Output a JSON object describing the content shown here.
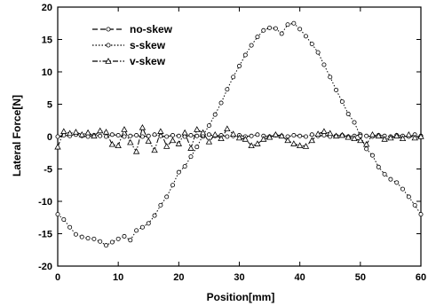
{
  "chart_data": {
    "type": "line",
    "title": "",
    "xlabel": "Position[mm]",
    "ylabel": "Lateral Force[N]",
    "xlim": [
      0,
      60
    ],
    "ylim": [
      -20,
      20
    ],
    "xticks": [
      0,
      10,
      20,
      30,
      40,
      50,
      60
    ],
    "yticks": [
      20,
      15,
      10,
      5,
      0,
      -5,
      -10,
      -15,
      -20
    ],
    "grid": false,
    "legend_position": "top-left",
    "series": [
      {
        "name": "no-skew",
        "marker": "circle",
        "line_style": "dash",
        "x": [
          0,
          1,
          2,
          3,
          4,
          5,
          6,
          7,
          8,
          9,
          10,
          11,
          12,
          13,
          14,
          15,
          16,
          17,
          18,
          19,
          20,
          21,
          22,
          23,
          24,
          25,
          26,
          27,
          28,
          29,
          30,
          31,
          32,
          33,
          34,
          35,
          36,
          37,
          38,
          39,
          40,
          41,
          42,
          43,
          44,
          45,
          46,
          47,
          48,
          49,
          50,
          51,
          52,
          53,
          54,
          55,
          56,
          57,
          58,
          59,
          60
        ],
        "y": [
          0,
          0.2,
          0.1,
          0.3,
          0.1,
          0,
          0.2,
          0.1,
          0,
          0.3,
          0.2,
          0,
          0.1,
          0.2,
          0,
          0.1,
          0.3,
          0.1,
          0,
          0.2,
          0.1,
          0,
          0.2,
          0.1,
          0,
          0.3,
          0.1,
          0.2,
          0,
          0.1,
          0.2,
          0,
          0.1,
          0.3,
          0.1,
          0,
          0.2,
          0.1,
          0,
          0.2,
          0.1,
          0,
          0.3,
          0.1,
          0.2,
          0,
          0.1,
          0.2,
          0,
          0.1,
          0.3,
          0.1,
          0,
          0.2,
          0.1,
          0,
          0.2,
          0.1,
          0,
          0.3,
          0.1
        ]
      },
      {
        "name": "s-skew",
        "marker": "circle",
        "line_style": "dot",
        "x": [
          0,
          1,
          2,
          3,
          4,
          5,
          6,
          7,
          8,
          9,
          10,
          11,
          12,
          13,
          14,
          15,
          16,
          17,
          18,
          19,
          20,
          21,
          22,
          23,
          24,
          25,
          26,
          27,
          28,
          29,
          30,
          31,
          32,
          33,
          34,
          35,
          36,
          37,
          38,
          39,
          40,
          41,
          42,
          43,
          44,
          45,
          46,
          47,
          48,
          49,
          50,
          51,
          52,
          53,
          54,
          55,
          56,
          57,
          58,
          59,
          60
        ],
        "y": [
          -12,
          -12.8,
          -14,
          -15.1,
          -15.5,
          -15.7,
          -15.8,
          -16.2,
          -16.8,
          -16.3,
          -15.8,
          -15.4,
          -16,
          -14.5,
          -14,
          -13.4,
          -12.2,
          -10.6,
          -9.3,
          -7.5,
          -5.5,
          -4.6,
          -3.1,
          -1.6,
          0.2,
          1.7,
          3.4,
          5.2,
          7.3,
          9.2,
          10.9,
          12.6,
          14.1,
          15.4,
          16.4,
          16.8,
          16.7,
          15.9,
          17.3,
          17.5,
          16.6,
          15.5,
          14.3,
          13,
          11.1,
          9.2,
          7.2,
          5.4,
          3.5,
          2.2,
          0.1,
          -1.9,
          -2.9,
          -4.7,
          -5.8,
          -6.6,
          -7.1,
          -8.1,
          -9.3,
          -10.6,
          -12
        ]
      },
      {
        "name": "v-skew",
        "marker": "triangle",
        "line_style": "dashdot",
        "x": [
          0,
          1,
          2,
          3,
          4,
          5,
          6,
          7,
          8,
          9,
          10,
          11,
          12,
          13,
          14,
          15,
          16,
          17,
          18,
          19,
          20,
          21,
          22,
          23,
          24,
          25,
          26,
          27,
          28,
          29,
          30,
          31,
          32,
          33,
          34,
          35,
          36,
          37,
          38,
          39,
          40,
          41,
          42,
          43,
          44,
          45,
          46,
          47,
          48,
          49,
          50,
          51,
          52,
          53,
          54,
          55,
          56,
          57,
          58,
          59,
          60
        ],
        "y": [
          -1.6,
          0.8,
          0.5,
          0.7,
          0.3,
          0.6,
          0.1,
          0.9,
          0.7,
          -1.2,
          -1.4,
          1.1,
          -0.9,
          -2.3,
          1.4,
          -0.7,
          -2.1,
          0.8,
          -1.5,
          -0.6,
          -1.1,
          0.6,
          -1.8,
          1.1,
          0.6,
          -0.8,
          0.3,
          -0.3,
          1.2,
          0.4,
          -0.2,
          -0.4,
          -1.4,
          -1.1,
          -0.4,
          -0.1,
          0.3,
          0.1,
          -0.6,
          -1.1,
          -1.4,
          -1.5,
          -0.6,
          0.4,
          0.8,
          0.5,
          0.1,
          0.2,
          -0.1,
          -0.3,
          -0.6,
          -1.2,
          0.3,
          0.1,
          -0.4,
          -0.2,
          0.1,
          -0.3,
          0.3,
          -0.2,
          0
        ]
      }
    ]
  }
}
